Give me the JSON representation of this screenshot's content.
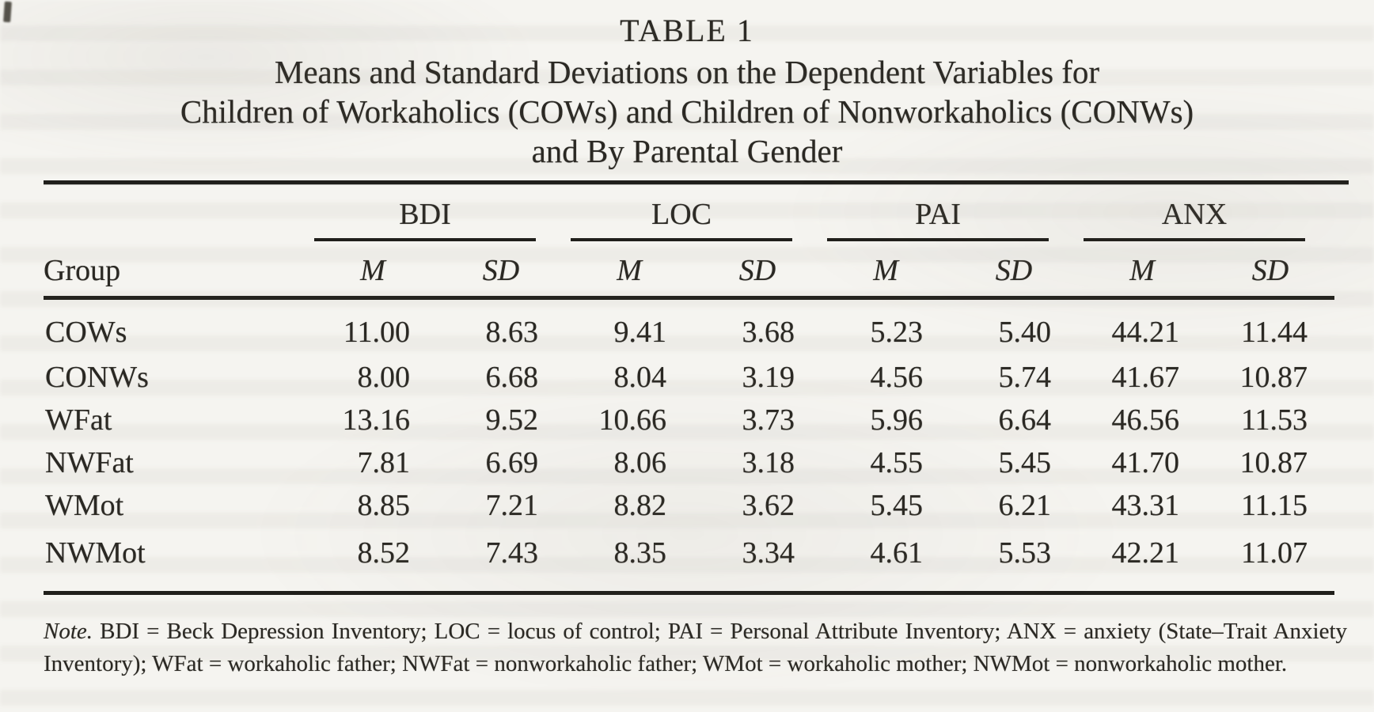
{
  "table": {
    "number": "TABLE 1",
    "title_lines": [
      "Means and Standard Deviations on the Dependent Variables for",
      "Children of Workaholics (COWs) and Children of Nonworkaholics (CONWs)",
      "and By Parental Gender"
    ],
    "group_header": "Group",
    "column_groups": [
      {
        "label": "BDI"
      },
      {
        "label": "LOC"
      },
      {
        "label": "PAI"
      },
      {
        "label": "ANX"
      }
    ],
    "subheaders": [
      "M",
      "SD"
    ],
    "rows": [
      {
        "group": "COWs",
        "values": [
          "11.00",
          "8.63",
          "9.41",
          "3.68",
          "5.23",
          "5.40",
          "44.21",
          "11.44"
        ]
      },
      {
        "group": "CONWs",
        "values": [
          "8.00",
          "6.68",
          "8.04",
          "3.19",
          "4.56",
          "5.74",
          "41.67",
          "10.87"
        ]
      },
      {
        "group": "WFat",
        "values": [
          "13.16",
          "9.52",
          "10.66",
          "3.73",
          "5.96",
          "6.64",
          "46.56",
          "11.53"
        ]
      },
      {
        "group": "NWFat",
        "values": [
          "7.81",
          "6.69",
          "8.06",
          "3.18",
          "4.55",
          "5.45",
          "41.70",
          "10.87"
        ]
      },
      {
        "group": "WMot",
        "values": [
          "8.85",
          "7.21",
          "8.82",
          "3.62",
          "5.45",
          "6.21",
          "43.31",
          "11.15"
        ]
      },
      {
        "group": "NWMot",
        "values": [
          "8.52",
          "7.43",
          "8.35",
          "3.34",
          "4.61",
          "5.53",
          "42.21",
          "11.07"
        ]
      }
    ],
    "note_label": "Note.",
    "note_text": "BDI = Beck Depression Inventory; LOC = locus of control; PAI = Personal Attribute Inventory; ANX = anxiety (State–Trait Anxiety Inventory); WFat = workaholic father; NWFat = nonworkaholic father; WMot = workaholic mother; NWMot = nonworkaholic mother.",
    "text_color": "#2a2823",
    "rule_color": "#201f1b",
    "background_color": "#f5f4f0"
  }
}
